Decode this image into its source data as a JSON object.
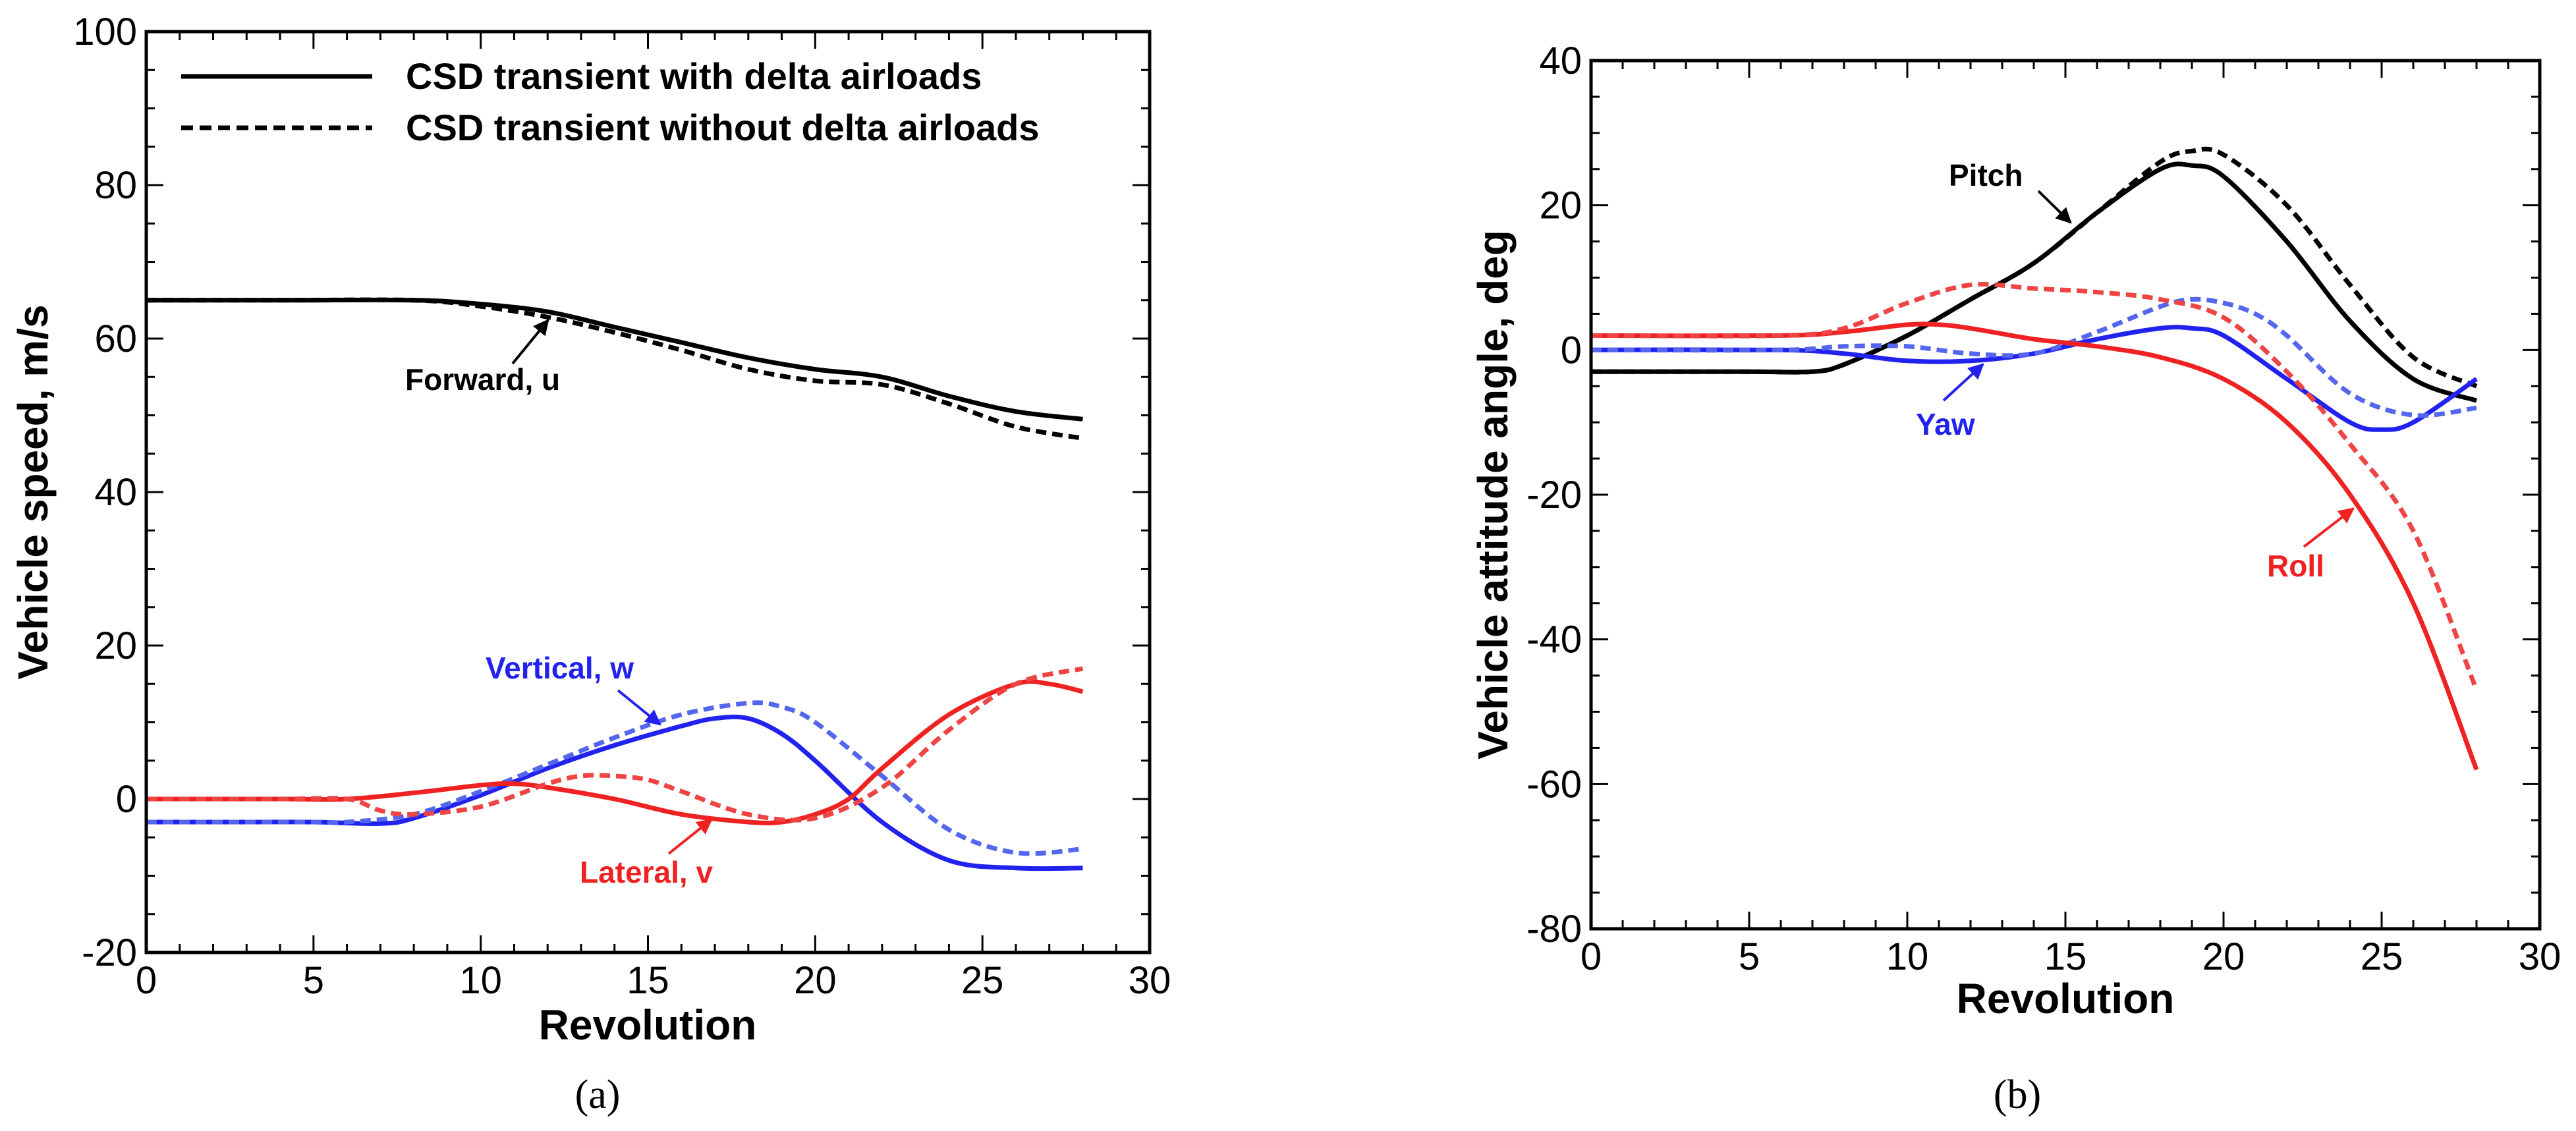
{
  "colors": {
    "black": "#000000",
    "blue": "#2222ee",
    "red": "#ee2222",
    "blue_dashed": "#5566ee",
    "red_dashed": "#ee4444"
  },
  "legend": {
    "solid_label": "CSD transient with delta airloads",
    "dashed_label": "CSD transient without delta airloads"
  },
  "chart_data": [
    {
      "type": "line",
      "caption": "(a)",
      "xlabel": "Revolution",
      "ylabel": "Vehicle speed, m/s",
      "xlim": [
        0,
        30
      ],
      "ylim": [
        -20,
        100
      ],
      "xticks": [
        0,
        5,
        10,
        15,
        20,
        25,
        30
      ],
      "yticks": [
        -20,
        0,
        20,
        40,
        60,
        80,
        100
      ],
      "series": [
        {
          "name": "Forward, u (with delta airloads)",
          "color": "black",
          "style": "solid",
          "x": [
            0,
            4,
            8,
            10,
            12,
            14,
            16,
            18,
            20,
            22,
            24,
            26,
            28
          ],
          "y": [
            65,
            65,
            65,
            64.5,
            63.5,
            61.5,
            59.5,
            57.5,
            56,
            55,
            52.5,
            50.5,
            49.5
          ]
        },
        {
          "name": "Forward, u (without delta airloads)",
          "color": "black",
          "style": "dashed",
          "x": [
            0,
            4,
            8,
            10,
            12,
            14,
            16,
            18,
            20,
            22,
            24,
            26,
            28
          ],
          "y": [
            65,
            65,
            65,
            64.2,
            62.8,
            60.8,
            58.5,
            56,
            54.5,
            54,
            51.5,
            48.5,
            47
          ]
        },
        {
          "name": "Vertical, w (with delta airloads)",
          "color": "blue",
          "style": "solid",
          "x": [
            0,
            3,
            5,
            7,
            8,
            10,
            12,
            14,
            16,
            17,
            18,
            19,
            20,
            22,
            24,
            26,
            28
          ],
          "y": [
            -3,
            -3,
            -3,
            -3.2,
            -2.5,
            0.5,
            4,
            7,
            9.5,
            10.5,
            10.5,
            8.5,
            5,
            -3,
            -8,
            -9,
            -9
          ]
        },
        {
          "name": "Vertical, w (without delta airloads)",
          "color": "blue",
          "style": "dashed",
          "x": [
            0,
            3,
            5,
            6,
            8,
            10,
            12,
            14,
            16,
            18,
            19,
            20,
            22,
            24,
            26,
            28
          ],
          "y": [
            -3,
            -3,
            -3,
            -3,
            -2,
            1,
            4.5,
            8,
            11,
            12.5,
            12,
            10,
            3,
            -4,
            -7,
            -6.5
          ]
        },
        {
          "name": "Lateral, v (with delta airloads)",
          "color": "red",
          "style": "solid",
          "x": [
            0,
            4,
            6,
            8,
            10,
            11,
            12,
            14,
            16,
            18,
            19,
            20,
            21,
            22,
            24,
            26,
            27,
            28
          ],
          "y": [
            0,
            0,
            0,
            0.8,
            1.8,
            2,
            1.5,
            0,
            -2,
            -3,
            -3,
            -2,
            0,
            4,
            11,
            15,
            15,
            14
          ]
        },
        {
          "name": "Lateral, v (without delta airloads)",
          "color": "red",
          "style": "dashed",
          "x": [
            0,
            4,
            6,
            7,
            8,
            10,
            12,
            13,
            14,
            15,
            16,
            18,
            20,
            22,
            24,
            26,
            28
          ],
          "y": [
            0,
            0,
            0,
            -1.5,
            -2,
            -1,
            2,
            3,
            3,
            2.5,
            1,
            -2,
            -2.5,
            1.5,
            9,
            15,
            17
          ]
        }
      ],
      "annotations": [
        {
          "text": "Forward, u",
          "color": "black"
        },
        {
          "text": "Vertical, w",
          "color": "blue"
        },
        {
          "text": "Lateral, v",
          "color": "red"
        }
      ]
    },
    {
      "type": "line",
      "caption": "(b)",
      "xlabel": "Revolution",
      "ylabel": "Vehicle attitude angle, deg",
      "xlim": [
        0,
        30
      ],
      "ylim": [
        -80,
        40
      ],
      "xticks": [
        0,
        5,
        10,
        15,
        20,
        25,
        30
      ],
      "yticks": [
        -80,
        -60,
        -40,
        -20,
        0,
        20,
        40
      ],
      "series": [
        {
          "name": "Pitch (with delta airloads)",
          "color": "black",
          "style": "solid",
          "x": [
            0,
            5,
            7,
            8,
            10,
            12,
            14,
            16,
            18,
            19,
            20,
            22,
            24,
            26,
            28
          ],
          "y": [
            -3,
            -3,
            -3,
            -2,
            2,
            7,
            12,
            19,
            25,
            25.5,
            24,
            15,
            4,
            -4,
            -7
          ]
        },
        {
          "name": "Pitch (without delta airloads)",
          "color": "black",
          "style": "dashed",
          "x": [
            0,
            5,
            7,
            8,
            10,
            12,
            14,
            16,
            18,
            19,
            20,
            22,
            24,
            26,
            28
          ],
          "y": [
            -3,
            -3,
            -3,
            -2,
            2,
            7,
            12,
            19,
            26,
            27.5,
            27,
            20,
            9,
            -1,
            -5
          ]
        },
        {
          "name": "Yaw (with delta airloads)",
          "color": "blue",
          "style": "solid",
          "x": [
            0,
            6,
            8,
            10,
            12,
            14,
            16,
            18,
            19,
            20,
            22,
            24,
            25,
            26,
            28
          ],
          "y": [
            0,
            0,
            -0.5,
            -1.5,
            -1.5,
            -0.5,
            1.5,
            3,
            3,
            2,
            -4,
            -10,
            -11,
            -10,
            -4
          ]
        },
        {
          "name": "Yaw (without delta airloads)",
          "color": "blue",
          "style": "dashed",
          "x": [
            0,
            6,
            8,
            10,
            12,
            14,
            16,
            18,
            19,
            20,
            21,
            22,
            24,
            26,
            28
          ],
          "y": [
            0,
            0,
            0.5,
            0.5,
            -0.5,
            -0.5,
            2.5,
            6,
            7,
            6.5,
            5,
            2,
            -6,
            -9,
            -8
          ]
        },
        {
          "name": "Roll (with delta airloads)",
          "color": "red",
          "style": "solid",
          "x": [
            0,
            6,
            8,
            10,
            11,
            12,
            14,
            16,
            18,
            20,
            22,
            24,
            26,
            28
          ],
          "y": [
            2,
            2,
            2.5,
            3.5,
            3.5,
            3,
            1.5,
            0.5,
            -1,
            -4,
            -10,
            -20,
            -35,
            -58
          ]
        },
        {
          "name": "Roll (without delta airloads)",
          "color": "red",
          "style": "dashed",
          "x": [
            0,
            6,
            8,
            10,
            12,
            14,
            16,
            18,
            20,
            22,
            24,
            26,
            28
          ],
          "y": [
            2,
            2,
            3,
            6.5,
            9,
            8.5,
            8,
            7,
            4.5,
            -3,
            -13,
            -25,
            -47
          ]
        }
      ],
      "annotations": [
        {
          "text": "Pitch",
          "color": "black"
        },
        {
          "text": "Yaw",
          "color": "blue"
        },
        {
          "text": "Roll",
          "color": "red"
        }
      ]
    }
  ]
}
